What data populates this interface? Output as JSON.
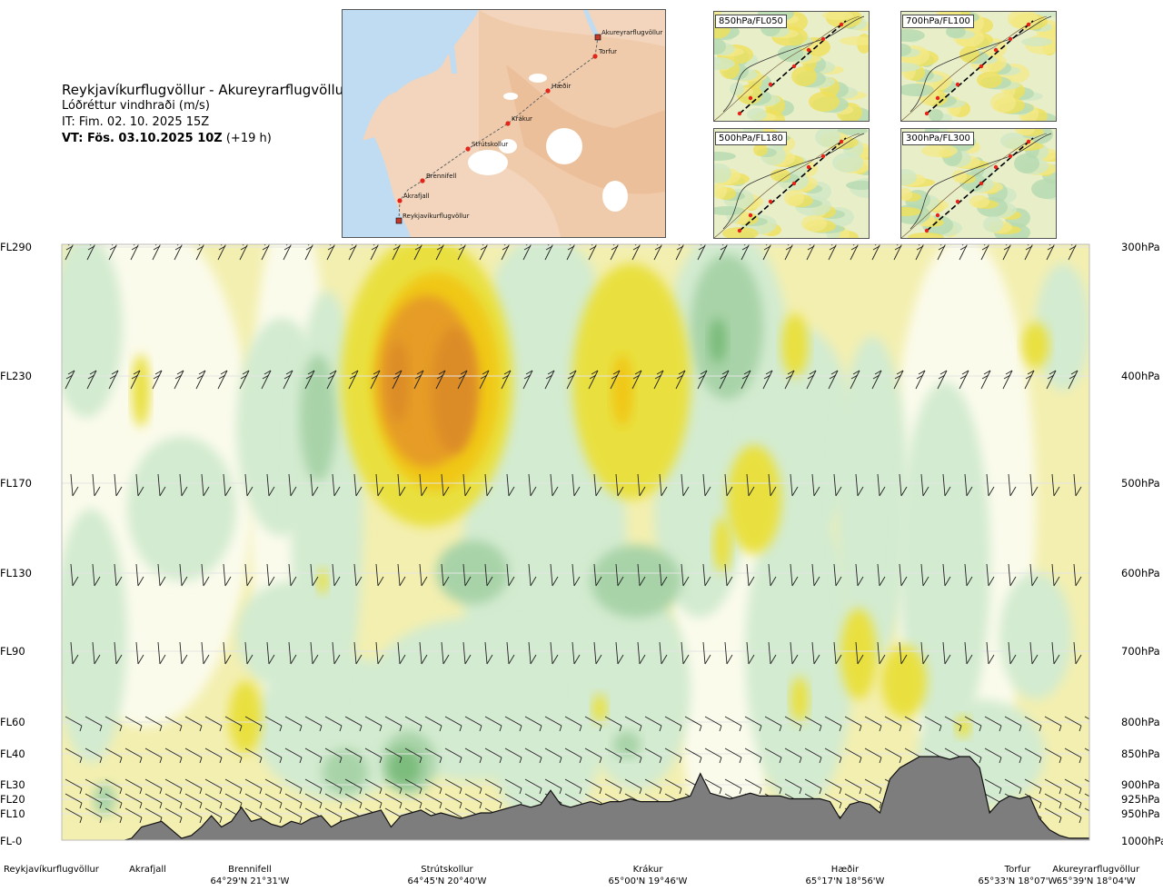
{
  "title": {
    "route": "Reykjavíkurflugvöllur - Akureyrarflugvöllur",
    "parameter": "Lóðréttur vindhraði (m/s)",
    "issue_time": "IT: Fim. 02. 10. 2025 15Z",
    "valid_time_bold": "VT: Fös. 03.10.2025 10Z",
    "valid_time_offset": "(+19 h)"
  },
  "route_map": {
    "points": [
      {
        "name": "Akureyrarflugvöllur",
        "type": "airport"
      },
      {
        "name": "Torfur",
        "type": "waypoint"
      },
      {
        "name": "Hæðir",
        "type": "waypoint"
      },
      {
        "name": "Krákur",
        "type": "waypoint"
      },
      {
        "name": "Strútskollur",
        "type": "waypoint"
      },
      {
        "name": "Brennifell",
        "type": "waypoint"
      },
      {
        "name": "Akrafjall",
        "type": "waypoint"
      },
      {
        "name": "Reykjavíkurflugvöllur",
        "type": "airport"
      }
    ]
  },
  "mini_maps": [
    {
      "label": "850hPa/FL050"
    },
    {
      "label": "700hPa/FL100"
    },
    {
      "label": "500hPa/FL180"
    },
    {
      "label": "300hPa/FL300"
    }
  ],
  "colors": {
    "terrain": "#7d7d7d",
    "up_weak": "#f3efb0",
    "up_mod": "#e9e040",
    "up_strong": "#f0c814",
    "up_very": "#e69c28",
    "up_extreme": "#dc8c28",
    "down_weak": "#d3ebd0",
    "down_mod": "#a8d3a8",
    "down_strong": "#7cbc7c",
    "neutral": "#fbfbec"
  },
  "chart_data": {
    "type": "heatmap",
    "title": "",
    "xlabel": "",
    "ylabel": "",
    "levels": [
      {
        "fl": "FL290",
        "hpa": "300hPa"
      },
      {
        "fl": "FL230",
        "hpa": "400hPa"
      },
      {
        "fl": "FL170",
        "hpa": "500hPa"
      },
      {
        "fl": "FL130",
        "hpa": "600hPa"
      },
      {
        "fl": "FL90",
        "hpa": "700hPa"
      },
      {
        "fl": "FL60",
        "hpa": "800hPa"
      },
      {
        "fl": "FL40",
        "hpa": "850hPa"
      },
      {
        "fl": "FL30",
        "hpa": "900hPa"
      },
      {
        "fl": "FL20",
        "hpa": "925hPa"
      },
      {
        "fl": "FL10",
        "hpa": "950hPa"
      },
      {
        "fl": "FL-0",
        "hpa": "1000hPa"
      }
    ],
    "stations": [
      {
        "name": "Reykjavíkurflugvöllur",
        "coord": ""
      },
      {
        "name": "Akrafjall",
        "coord": ""
      },
      {
        "name": "Brennifell",
        "coord": "64°29'N 21°31'W"
      },
      {
        "name": "Strútskollur",
        "coord": "64°45'N 20°40'W"
      },
      {
        "name": "Krákur",
        "coord": "65°00'N 19°46'W"
      },
      {
        "name": "Hæðir",
        "coord": "65°17'N 18°56'W"
      },
      {
        "name": "Torfur",
        "coord": "65°33'N 18°07'W"
      },
      {
        "name": "Akureyrarflugvöllur",
        "coord": "65°39'N 18°04'W"
      }
    ],
    "terrain_profile_fl": [
      0,
      0,
      0,
      0,
      0,
      0,
      0,
      1,
      5,
      6,
      7,
      4,
      1,
      2,
      5,
      9,
      5,
      7,
      12,
      7,
      8,
      6,
      5,
      7,
      6,
      8,
      9,
      5,
      7,
      8,
      9,
      10,
      11,
      5,
      9,
      10,
      11,
      9,
      10,
      9,
      8,
      9,
      10,
      10,
      11,
      12,
      13,
      12,
      13,
      18,
      13,
      12,
      13,
      14,
      13,
      14,
      14,
      15,
      14,
      14,
      14,
      14,
      15,
      16,
      24,
      17,
      16,
      15,
      16,
      17,
      16,
      16,
      16,
      15,
      15,
      15,
      15,
      14,
      8,
      13,
      14,
      13,
      10,
      22,
      26,
      28,
      30,
      30,
      30,
      29,
      30,
      30,
      26,
      10,
      14,
      16,
      15,
      16,
      8,
      4,
      2,
      1,
      1,
      1
    ]
  }
}
